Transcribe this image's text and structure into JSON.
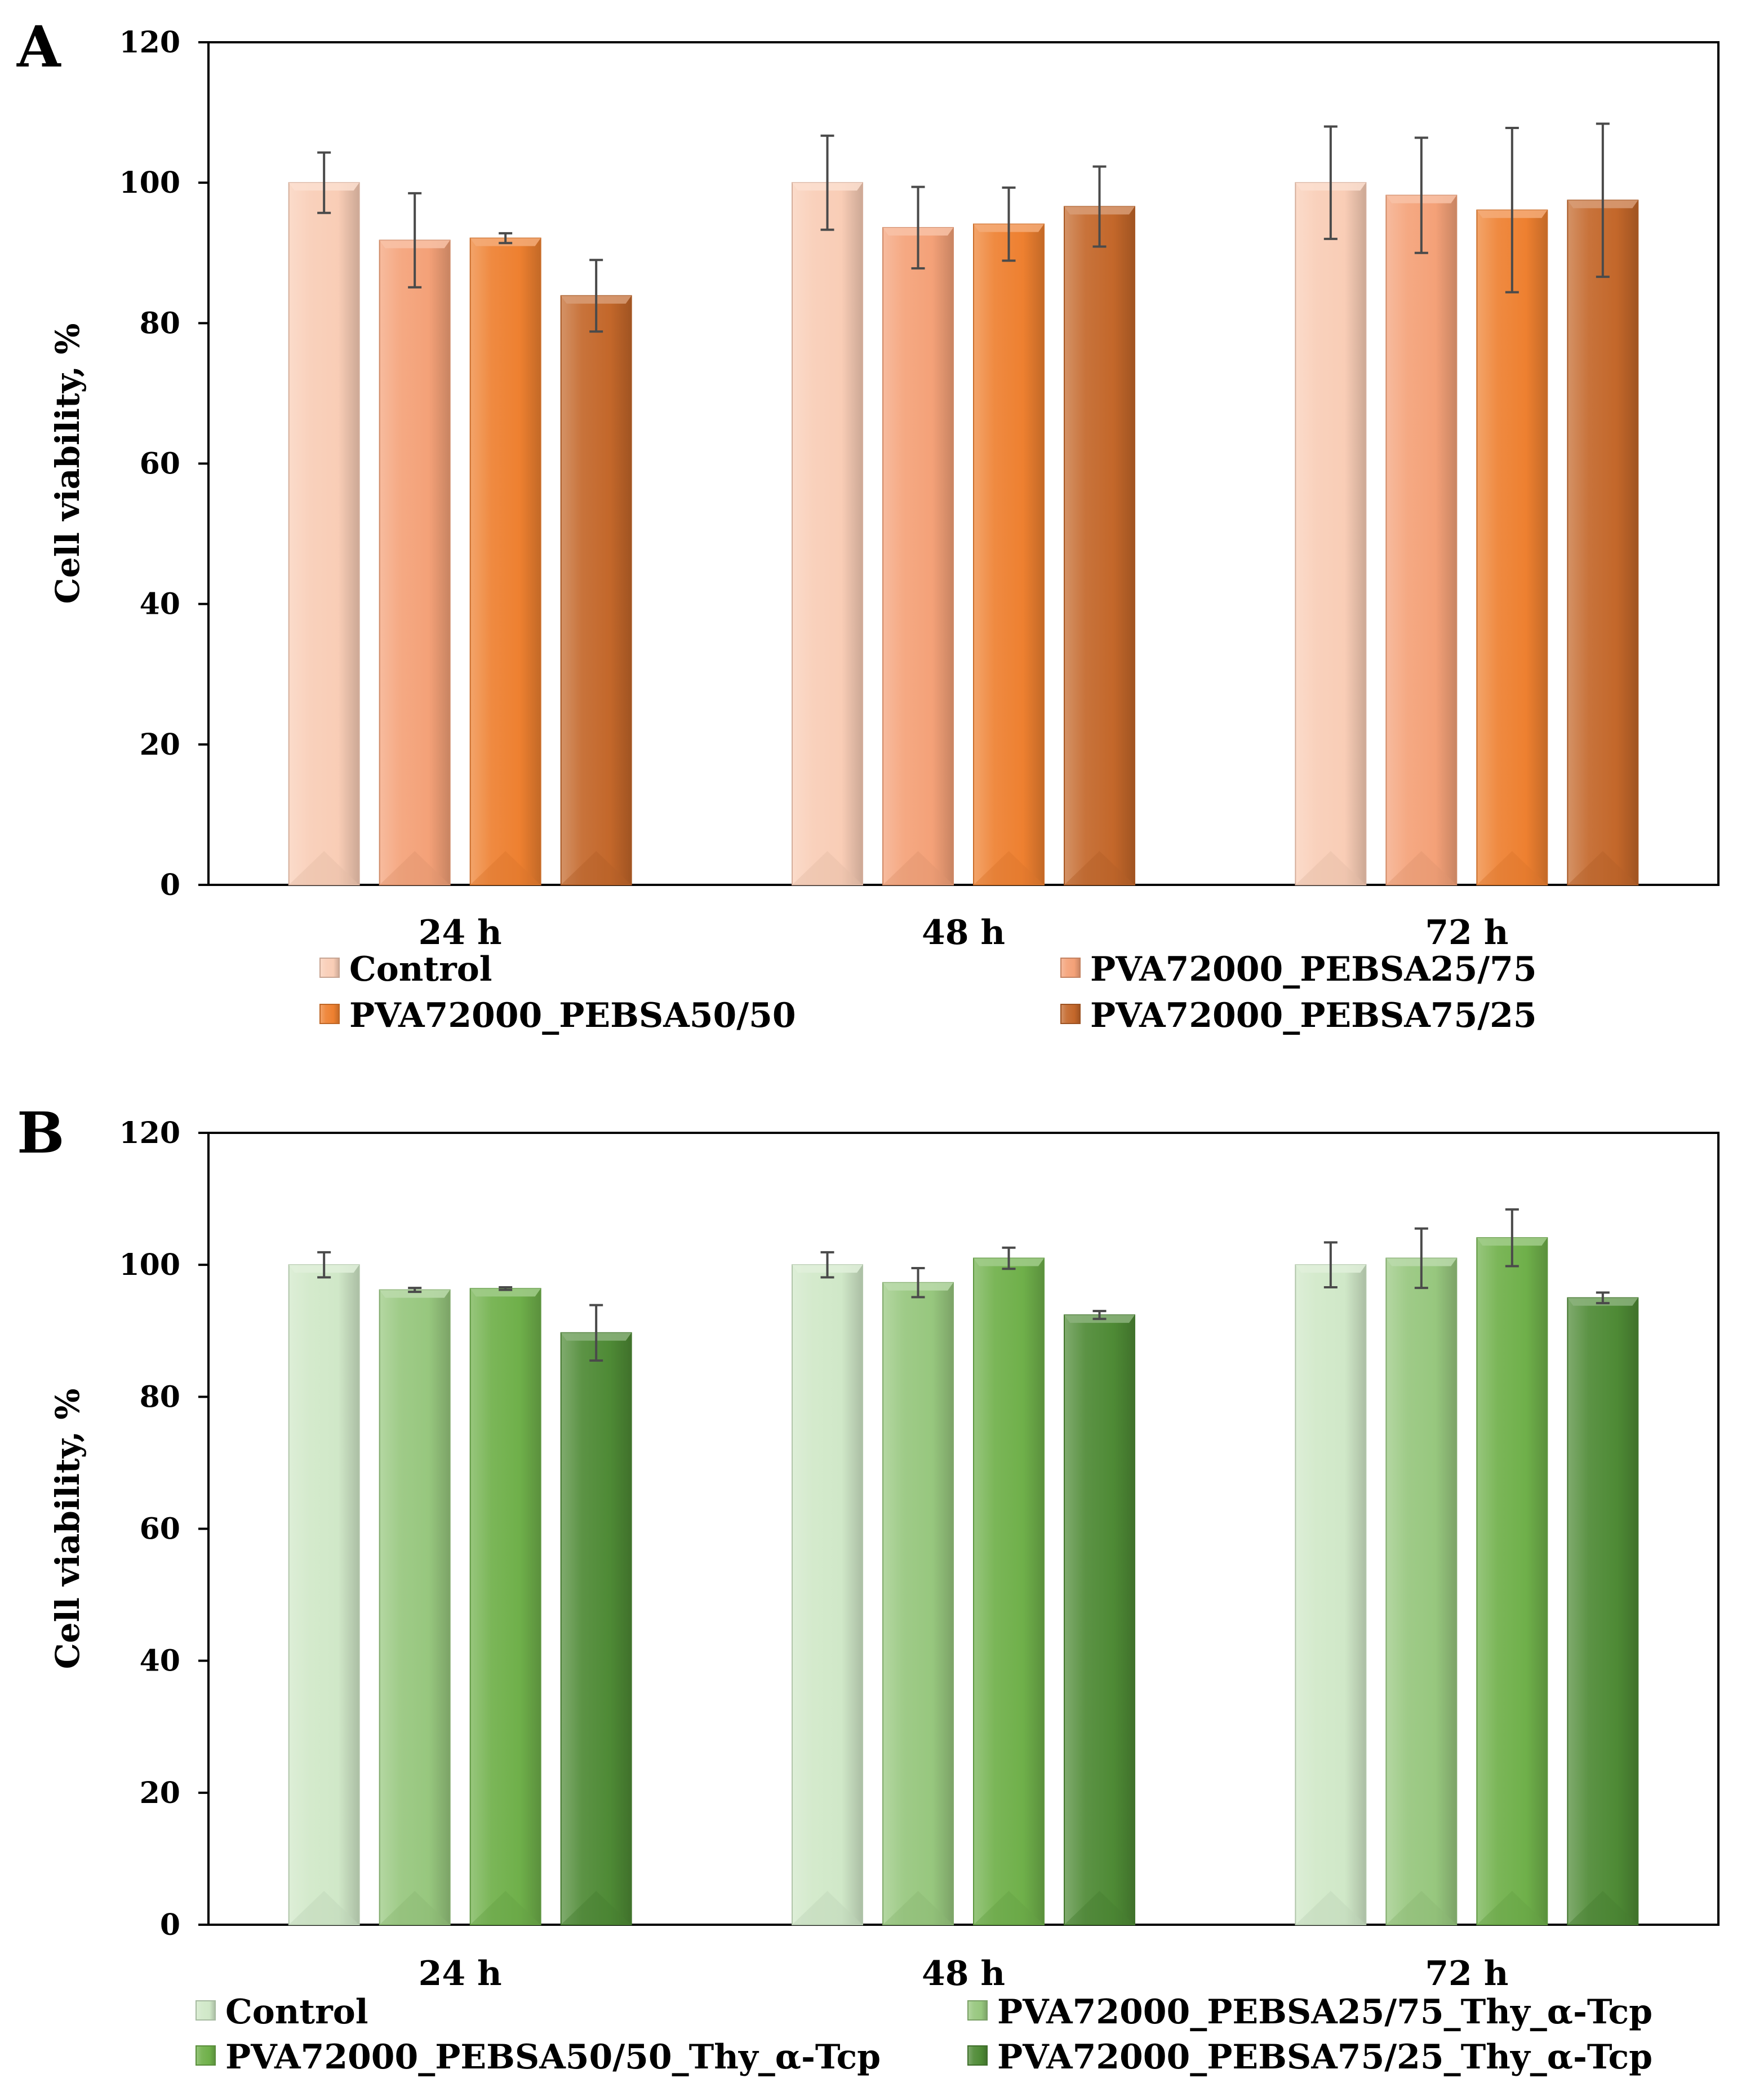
{
  "chart_data": [
    {
      "panel": "A",
      "type": "bar",
      "ylabel": "Cell viability, %",
      "ylim": [
        0,
        120
      ],
      "yticks": [
        0,
        20,
        40,
        60,
        80,
        100,
        120
      ],
      "categories": [
        "24 h",
        "48 h",
        "72 h"
      ],
      "series": [
        {
          "name": "Control",
          "color": "#F9CDB6",
          "values": [
            100,
            100,
            100
          ],
          "errors": [
            4.3,
            6.7,
            8.0
          ]
        },
        {
          "name": "PVA72000_PEBSA25/75",
          "color": "#F4A178",
          "values": [
            91.8,
            93.6,
            98.2
          ],
          "errors": [
            6.7,
            5.8,
            8.2
          ]
        },
        {
          "name": "PVA72000_PEBSA50/50",
          "color": "#EE8030",
          "values": [
            92.1,
            94.1,
            96.1
          ],
          "errors": [
            0.7,
            5.2,
            11.7
          ]
        },
        {
          "name": "PVA72000_PEBSA75/25",
          "color": "#C3672A",
          "values": [
            83.9,
            96.6,
            97.5
          ],
          "errors": [
            5.1,
            5.7,
            10.9
          ]
        }
      ]
    },
    {
      "panel": "B",
      "type": "bar",
      "ylabel": "Cell viability, %",
      "ylim": [
        0,
        120
      ],
      "yticks": [
        0,
        20,
        40,
        60,
        80,
        100,
        120
      ],
      "categories": [
        "24 h",
        "48 h",
        "72 h"
      ],
      "series": [
        {
          "name": "Control",
          "color": "#D0E8C8",
          "values": [
            100,
            100,
            100
          ],
          "errors": [
            1.9,
            1.9,
            3.4
          ]
        },
        {
          "name": "PVA72000_PEBSA25/75_Thy_α-Tcp",
          "color": "#97C77E",
          "values": [
            96.2,
            97.3,
            101.0
          ],
          "errors": [
            0.3,
            2.2,
            4.5
          ]
        },
        {
          "name": "PVA72000_PEBSA50/50_Thy_α-Tcp",
          "color": "#6FB04A",
          "values": [
            96.4,
            101.0,
            104.1
          ],
          "errors": [
            0.2,
            1.6,
            4.3
          ]
        },
        {
          "name": "PVA72000_PEBSA75/25_Thy_α-Tcp",
          "color": "#4E8A35",
          "values": [
            89.7,
            92.4,
            95.0
          ],
          "errors": [
            4.2,
            0.6,
            0.8
          ]
        }
      ]
    }
  ]
}
